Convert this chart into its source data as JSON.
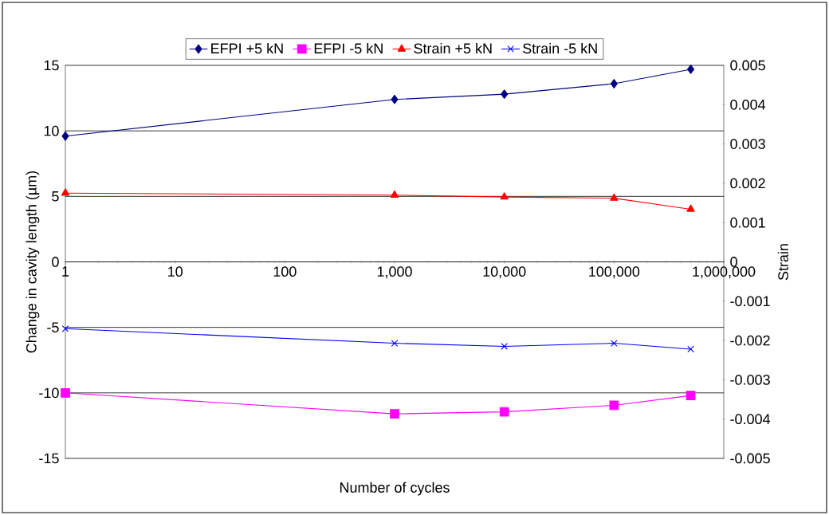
{
  "chart_data": {
    "type": "line",
    "xlabel": "Number of cycles",
    "ylabel": "Change in cavity length (µm)",
    "y2label": "Strain",
    "x": [
      1,
      1000,
      10000,
      100000,
      500000
    ],
    "series": [
      {
        "name": "EFPI +5 kN",
        "color": "#000080",
        "marker": "diamond",
        "axis": "y",
        "values": [
          9.6,
          12.4,
          12.8,
          13.6,
          14.7
        ]
      },
      {
        "name": "EFPI -5 kN",
        "color": "#ff00ff",
        "marker": "square",
        "axis": "y",
        "values": [
          -10.0,
          -11.6,
          -11.45,
          -10.95,
          -10.2
        ]
      },
      {
        "name": "Strain +5 kN",
        "color": "#ff0000",
        "marker": "triangle",
        "axis": "y2",
        "values": [
          0.00175,
          0.0017,
          0.00165,
          0.00162,
          0.00134
        ]
      },
      {
        "name": "Strain -5 kN",
        "color": "#0000ff",
        "marker": "cross",
        "axis": "y2",
        "values": [
          -0.0017,
          -0.00207,
          -0.00215,
          -0.00207,
          -0.00222
        ]
      }
    ],
    "log": "x",
    "grid": "y",
    "legend": "top",
    "line_style": "solid",
    "xlim": [
      1,
      1000000
    ],
    "xticks": [
      1,
      10,
      100,
      {
        "value": 1000,
        "label": "1,000"
      },
      {
        "value": 10000,
        "label": "10,000"
      },
      {
        "value": 100000,
        "label": "100,000"
      },
      {
        "value": 1000000,
        "label": "1,000,000"
      }
    ],
    "ylim": [
      -15,
      15
    ],
    "yticks": [
      -15,
      -10,
      -5,
      0,
      5,
      10,
      15
    ],
    "y2lim": [
      -0.005,
      0.005
    ],
    "y2ticks": [
      -0.005,
      -0.004,
      -0.003,
      -0.002,
      -0.001,
      0,
      0.001,
      0.002,
      0.003,
      0.004,
      0.005
    ]
  }
}
